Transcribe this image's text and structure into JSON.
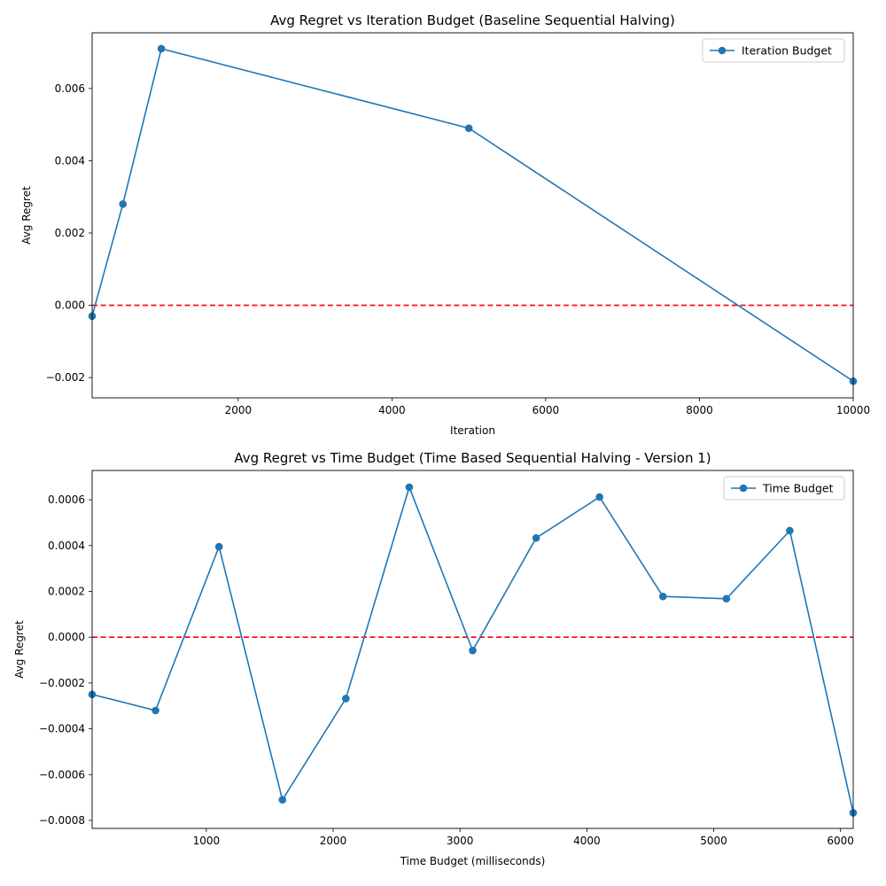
{
  "chart_data": [
    {
      "type": "line",
      "title": "Avg Regret vs Iteration Budget (Baseline Sequential Halving)",
      "xlabel": "Iteration",
      "ylabel": "Avg Regret",
      "xlim": [
        100,
        10000
      ],
      "ylim": [
        -0.00256,
        0.00754
      ],
      "xticks": [
        2000,
        4000,
        6000,
        8000,
        10000
      ],
      "xtick_labels": [
        "2000",
        "4000",
        "6000",
        "8000",
        "10000"
      ],
      "yticks": [
        -0.002,
        0,
        0.002,
        0.004,
        0.006
      ],
      "ytick_labels": [
        "−0.002",
        "0.000",
        "0.002",
        "0.004",
        "0.006"
      ],
      "legend_position": "top-right",
      "reference_line": {
        "y": 0,
        "color": "#ff0000",
        "style": "dashed"
      },
      "series": [
        {
          "name": "Iteration Budget",
          "color": "#1f77b4",
          "marker": "circle",
          "x": [
            100,
            500,
            1000,
            5000,
            10000
          ],
          "values": [
            -0.0003,
            0.0028,
            0.0071,
            0.0049,
            -0.0021
          ]
        }
      ]
    },
    {
      "type": "line",
      "title": "Avg Regret vs Time Budget (Time Based Sequential Halving - Version 1)",
      "xlabel": "Time Budget (milliseconds)",
      "ylabel": "Avg Regret",
      "xlim": [
        100,
        6100
      ],
      "ylim": [
        -0.000835,
        0.000728
      ],
      "xticks": [
        1000,
        2000,
        3000,
        4000,
        5000,
        6000
      ],
      "xtick_labels": [
        "1000",
        "2000",
        "3000",
        "4000",
        "5000",
        "6000"
      ],
      "yticks": [
        -0.0008,
        -0.0006,
        -0.0004,
        -0.0002,
        0,
        0.0002,
        0.0004,
        0.0006
      ],
      "ytick_labels": [
        "−0.0008",
        "−0.0006",
        "−0.0004",
        "−0.0002",
        "0.0000",
        "0.0002",
        "0.0004",
        "0.0006"
      ],
      "legend_position": "top-right",
      "reference_line": {
        "y": 0,
        "color": "#ff0000",
        "style": "dashed"
      },
      "series": [
        {
          "name": "Time Budget",
          "color": "#1f77b4",
          "marker": "circle",
          "x": [
            100,
            600,
            1100,
            1600,
            2100,
            2600,
            3100,
            3600,
            4100,
            4600,
            5100,
            5600,
            6100
          ],
          "values": [
            -0.00025,
            -0.00032,
            0.000395,
            -0.00071,
            -0.000268,
            0.000655,
            -5.8e-05,
            0.000433,
            0.000612,
            0.000178,
            0.000168,
            0.000465,
            -0.000767
          ]
        }
      ]
    }
  ]
}
